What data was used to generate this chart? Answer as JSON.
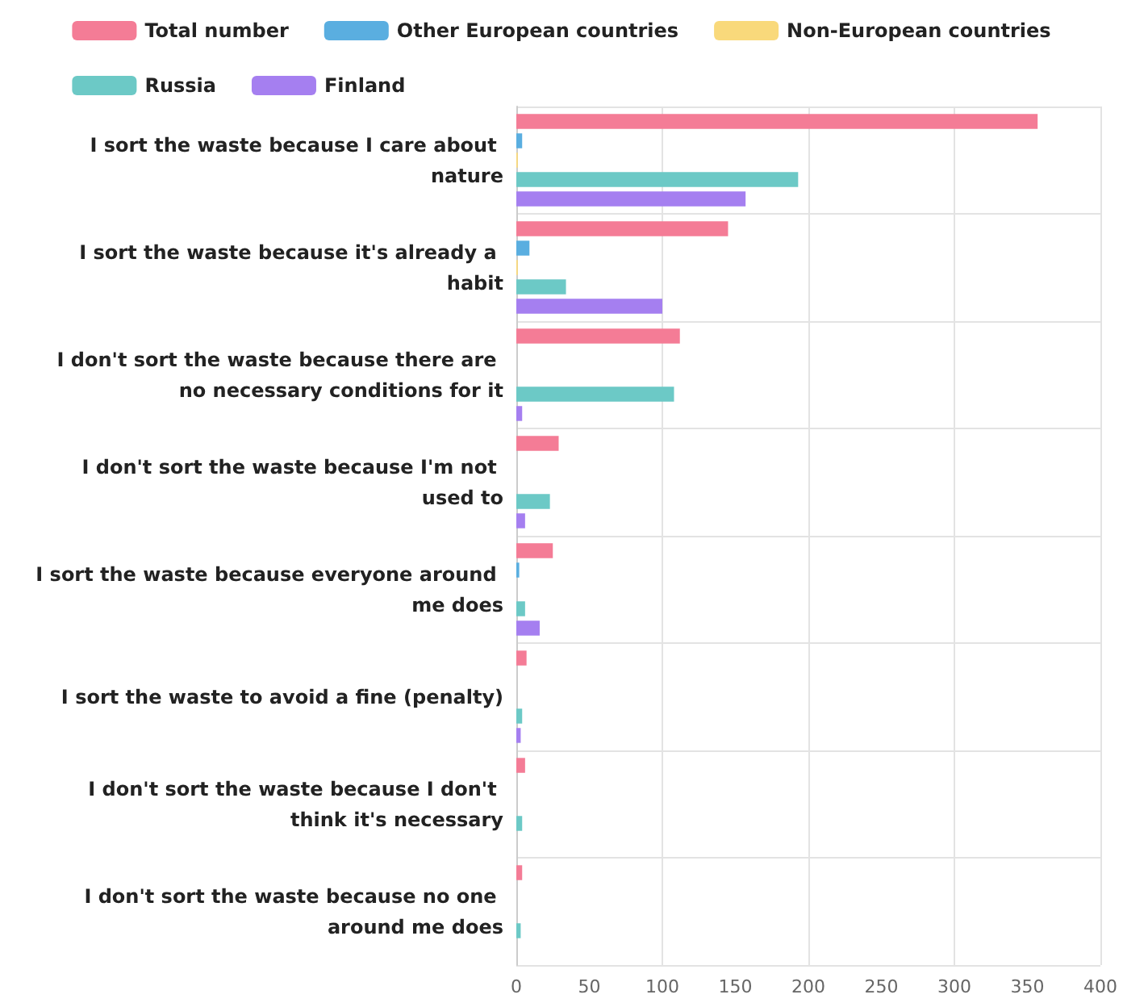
{
  "chart_data": {
    "type": "bar",
    "orientation": "horizontal",
    "categories": [
      "I sort the waste because I care about nature",
      "I sort the waste because it's already a habit",
      "I don't sort the waste because there are no necessary conditions for it",
      "I don't sort the waste because I'm not used to",
      "I sort the waste because everyone around me does",
      "I sort the waste to avoid a fine (penalty)",
      "I don't sort the waste because I don't think it's necessary",
      "I don't sort the waste because no one around me does"
    ],
    "series": [
      {
        "name": "Total number",
        "color": "#f47c96",
        "values": [
          357,
          145,
          112,
          29,
          25,
          7,
          6,
          4
        ]
      },
      {
        "name": "Other European countries",
        "color": "#5aaee0",
        "values": [
          4,
          9,
          0,
          0,
          2,
          0,
          0,
          0
        ]
      },
      {
        "name": "Non-European countries",
        "color": "#f9d97b",
        "values": [
          1,
          1,
          0,
          0,
          0,
          0,
          0,
          0
        ]
      },
      {
        "name": "Russia",
        "color": "#6cc9c6",
        "values": [
          193,
          34,
          108,
          23,
          6,
          4,
          4,
          3
        ]
      },
      {
        "name": "Finland",
        "color": "#a57ff0",
        "values": [
          157,
          100,
          4,
          6,
          16,
          3,
          0,
          0
        ]
      }
    ],
    "xlim": [
      0,
      400
    ],
    "xticks": [
      0,
      50,
      100,
      150,
      200,
      250,
      300,
      350,
      400
    ],
    "grid": true,
    "legend": "top"
  }
}
